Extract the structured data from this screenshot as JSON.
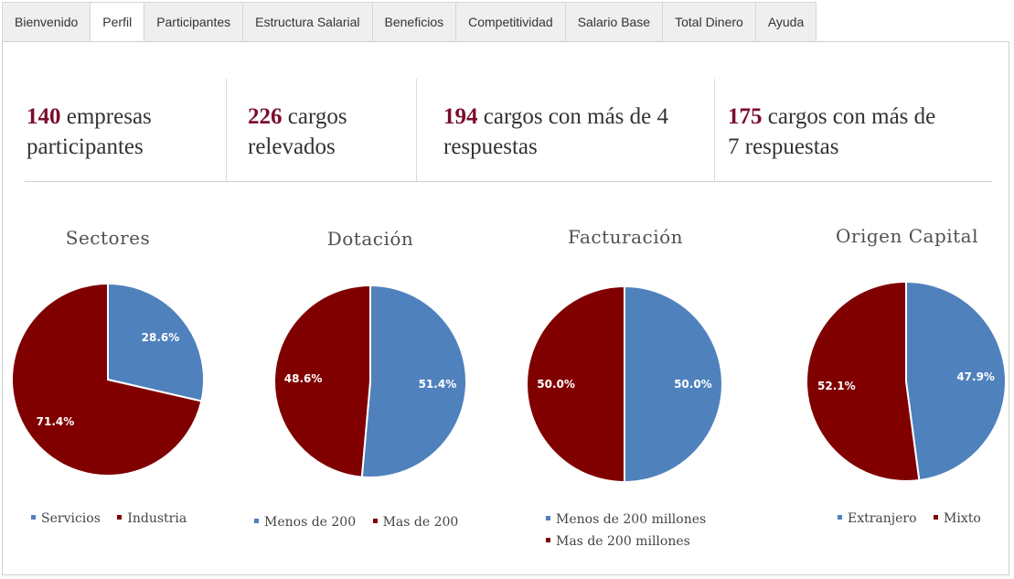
{
  "tabs": [
    "Bienvenido",
    "Perfil",
    "Participantes",
    "Estructura Salarial",
    "Beneficios",
    "Competitividad",
    "Salario Base",
    "Total Dinero",
    "Ayuda"
  ],
  "active_tab": "Perfil",
  "stats": [
    {
      "number": "140",
      "line1": " empresas",
      "line2": "participantes"
    },
    {
      "number": "226",
      "line1": " cargos",
      "line2": "relevados"
    },
    {
      "number": "194",
      "line1": " cargos con más de 4",
      "line2": "respuestas"
    },
    {
      "number": "175",
      "line1": " cargos con más de",
      "line2": "7 respuestas"
    }
  ],
  "colors": {
    "blue": "#4f81bd",
    "red": "#800000",
    "accent": "#7b0c2c"
  },
  "chart_data": [
    {
      "type": "pie",
      "title": "Sectores",
      "categories": [
        "Servicios",
        "Industria"
      ],
      "values": [
        28.6,
        71.4
      ],
      "labels": [
        "28.6%",
        "71.4%"
      ]
    },
    {
      "type": "pie",
      "title": "Dotación",
      "categories": [
        "Menos de 200",
        "Mas de 200"
      ],
      "values": [
        51.4,
        48.6
      ],
      "labels": [
        "51.4%",
        "48.6%"
      ]
    },
    {
      "type": "pie",
      "title": "Facturación",
      "categories": [
        "Menos de 200 millones",
        "Mas de 200 millones"
      ],
      "values": [
        50.0,
        50.0
      ],
      "labels": [
        "50.0%",
        "50.0%"
      ]
    },
    {
      "type": "pie",
      "title": "Origen Capital",
      "categories": [
        "Extranjero",
        "Mixto"
      ],
      "values": [
        47.9,
        52.1
      ],
      "labels": [
        "47.9%",
        "52.1%"
      ]
    }
  ]
}
